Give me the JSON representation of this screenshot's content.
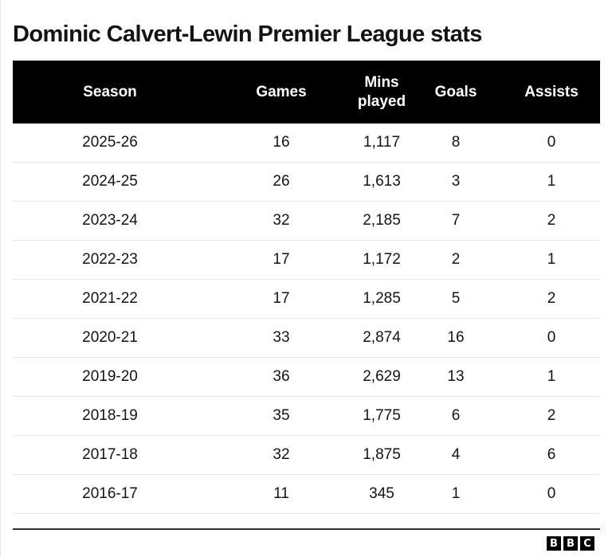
{
  "title": "Dominic Calvert-Lewin Premier League stats",
  "table": {
    "headers": {
      "season": "Season",
      "games": "Games",
      "mins_line1": "Mins",
      "mins_line2": "played",
      "goals": "Goals",
      "assists": "Assists"
    },
    "rows": [
      {
        "season": "2025-26",
        "games": "16",
        "mins": "1,117",
        "goals": "8",
        "assists": "0"
      },
      {
        "season": "2024-25",
        "games": "26",
        "mins": "1,613",
        "goals": "3",
        "assists": "1"
      },
      {
        "season": "2023-24",
        "games": "32",
        "mins": "2,185",
        "goals": "7",
        "assists": "2"
      },
      {
        "season": "2022-23",
        "games": "17",
        "mins": "1,172",
        "goals": "2",
        "assists": "1"
      },
      {
        "season": "2021-22",
        "games": "17",
        "mins": "1,285",
        "goals": "5",
        "assists": "2"
      },
      {
        "season": "2020-21",
        "games": "33",
        "mins": "2,874",
        "goals": "16",
        "assists": "0"
      },
      {
        "season": "2019-20",
        "games": "36",
        "mins": "2,629",
        "goals": "13",
        "assists": "1"
      },
      {
        "season": "2018-19",
        "games": "35",
        "mins": "1,775",
        "goals": "6",
        "assists": "2"
      },
      {
        "season": "2017-18",
        "games": "32",
        "mins": "1,875",
        "goals": "4",
        "assists": "6"
      },
      {
        "season": "2016-17",
        "games": "11",
        "mins": "345",
        "goals": "1",
        "assists": "0"
      }
    ]
  },
  "footer": {
    "logo_letters": [
      "B",
      "B",
      "C"
    ]
  },
  "colors": {
    "header_bg": "#000000",
    "header_text": "#ffffff",
    "text": "#141414",
    "row_divider": "#e4e4e4"
  }
}
